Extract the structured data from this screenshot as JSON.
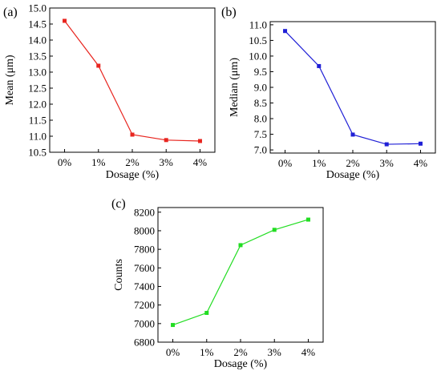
{
  "chart_data": [
    {
      "panel_label": "(a)",
      "type": "line",
      "categories": [
        "0%",
        "1%",
        "2%",
        "3%",
        "4%"
      ],
      "values": [
        14.6,
        13.2,
        11.05,
        10.88,
        10.85
      ],
      "xlabel": "Dosage (%)",
      "ylabel": "Mean (μm)",
      "ylim": [
        10.5,
        15.0
      ],
      "yticks": [
        10.5,
        11.0,
        11.5,
        12.0,
        12.5,
        13.0,
        13.5,
        14.0,
        14.5,
        15.0
      ],
      "ytick_labels": [
        "10.5",
        "11.0",
        "11.5",
        "12.0",
        "12.5",
        "13.0",
        "13.5",
        "14.0",
        "14.5",
        "15.0"
      ],
      "color": "#e8251f",
      "grid": false,
      "marker": "square"
    },
    {
      "panel_label": "(b)",
      "type": "line",
      "categories": [
        "0%",
        "1%",
        "2%",
        "3%",
        "4%"
      ],
      "values": [
        10.8,
        9.68,
        7.49,
        7.18,
        7.2
      ],
      "xlabel": "Dosage (%)",
      "ylabel": "Median (μm)",
      "ylim": [
        6.9,
        11.1
      ],
      "yticks": [
        7.0,
        7.5,
        8.0,
        8.5,
        9.0,
        9.5,
        10.0,
        10.5,
        11.0
      ],
      "ytick_labels": [
        "7.0",
        "7.5",
        "8.0",
        "8.5",
        "9.0",
        "9.5",
        "10.0",
        "10.5",
        "11.0"
      ],
      "color": "#1f1fd6",
      "grid": false,
      "marker": "square"
    },
    {
      "panel_label": "(c)",
      "type": "line",
      "categories": [
        "0%",
        "1%",
        "2%",
        "3%",
        "4%"
      ],
      "values": [
        6985,
        7115,
        7845,
        8010,
        8120
      ],
      "xlabel": "Dosage (%)",
      "ylabel": "Counts",
      "ylim": [
        6800,
        8250
      ],
      "yticks": [
        6800,
        7000,
        7200,
        7400,
        7600,
        7800,
        8000,
        8200
      ],
      "ytick_labels": [
        "6800",
        "7000",
        "7200",
        "7400",
        "7600",
        "7800",
        "8000",
        "8200"
      ],
      "color": "#22dd22",
      "grid": false,
      "marker": "square"
    }
  ]
}
